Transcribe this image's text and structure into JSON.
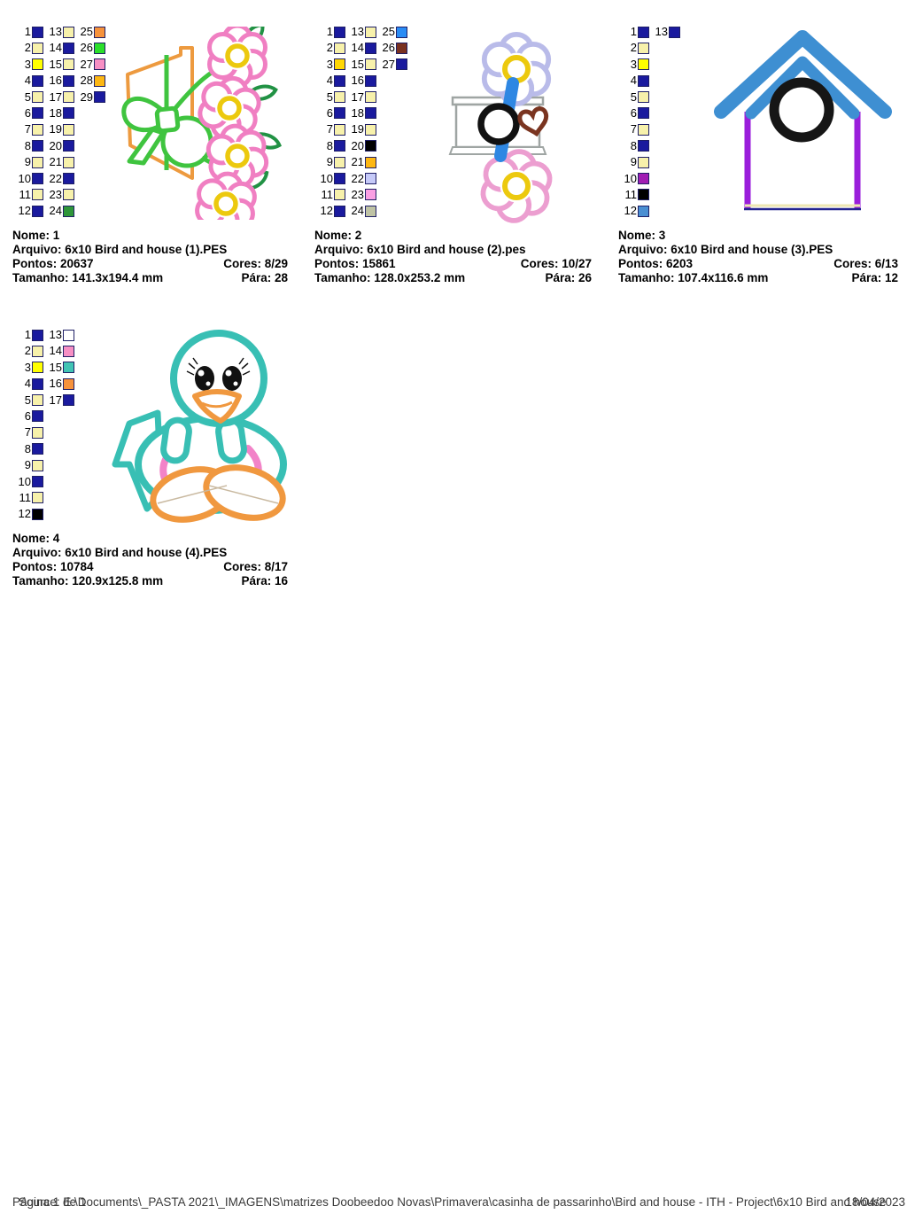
{
  "designs": [
    {
      "nome": "Nome: 1",
      "arquivo": "Arquivo: 6x10 Bird and house (1).PES",
      "pontos": "Pontos: 20637",
      "cores": "Cores: 8/29",
      "tamanho": "Tamanho: 141.3x194.4 mm",
      "para": "Pára: 28",
      "palette": [
        {
          "n": 1,
          "c": "#1A1A9E"
        },
        {
          "n": 2,
          "c": "#F7F1AB"
        },
        {
          "n": 3,
          "c": "#FFFF00"
        },
        {
          "n": 4,
          "c": "#1A1A9E"
        },
        {
          "n": 5,
          "c": "#F7F1AB"
        },
        {
          "n": 6,
          "c": "#1A1A9E"
        },
        {
          "n": 7,
          "c": "#F7F1AB"
        },
        {
          "n": 8,
          "c": "#1A1A9E"
        },
        {
          "n": 9,
          "c": "#F7F1AB"
        },
        {
          "n": 10,
          "c": "#1A1A9E"
        },
        {
          "n": 11,
          "c": "#F7F1AB"
        },
        {
          "n": 12,
          "c": "#1A1A9E"
        },
        {
          "n": 13,
          "c": "#F7F1AB"
        },
        {
          "n": 14,
          "c": "#1A1A9E"
        },
        {
          "n": 15,
          "c": "#F7F1AB"
        },
        {
          "n": 16,
          "c": "#1A1A9E"
        },
        {
          "n": 17,
          "c": "#F7F1AB"
        },
        {
          "n": 18,
          "c": "#1A1A9E"
        },
        {
          "n": 19,
          "c": "#F7F1AB"
        },
        {
          "n": 20,
          "c": "#1A1A9E"
        },
        {
          "n": 21,
          "c": "#F7F1AB"
        },
        {
          "n": 22,
          "c": "#1A1A9E"
        },
        {
          "n": 23,
          "c": "#F7F1AB"
        },
        {
          "n": 24,
          "c": "#2E9639"
        },
        {
          "n": 25,
          "c": "#F6923B"
        },
        {
          "n": 26,
          "c": "#2BDF2B"
        },
        {
          "n": 27,
          "c": "#F78FC4"
        },
        {
          "n": 28,
          "c": "#FDB713"
        },
        {
          "n": 29,
          "c": "#1A1A9E"
        }
      ]
    },
    {
      "nome": "Nome: 2",
      "arquivo": "Arquivo: 6x10 Bird and house (2).pes",
      "pontos": "Pontos: 15861",
      "cores": "Cores: 10/27",
      "tamanho": "Tamanho: 128.0x253.2 mm",
      "para": "Pára: 26",
      "palette": [
        {
          "n": 1,
          "c": "#1A1A9E"
        },
        {
          "n": 2,
          "c": "#F7F1AB"
        },
        {
          "n": 3,
          "c": "#FFD705"
        },
        {
          "n": 4,
          "c": "#1A1A9E"
        },
        {
          "n": 5,
          "c": "#F7F1AB"
        },
        {
          "n": 6,
          "c": "#1A1A9E"
        },
        {
          "n": 7,
          "c": "#F7F1AB"
        },
        {
          "n": 8,
          "c": "#1A1A9E"
        },
        {
          "n": 9,
          "c": "#F7F1AB"
        },
        {
          "n": 10,
          "c": "#1A1A9E"
        },
        {
          "n": 11,
          "c": "#F7F1AB"
        },
        {
          "n": 12,
          "c": "#1A1A9E"
        },
        {
          "n": 13,
          "c": "#F7F1AB"
        },
        {
          "n": 14,
          "c": "#1A1A9E"
        },
        {
          "n": 15,
          "c": "#F7F1AB"
        },
        {
          "n": 16,
          "c": "#1A1A9E"
        },
        {
          "n": 17,
          "c": "#F7F1AB"
        },
        {
          "n": 18,
          "c": "#1A1A9E"
        },
        {
          "n": 19,
          "c": "#F7F1AB"
        },
        {
          "n": 20,
          "c": "#000000"
        },
        {
          "n": 21,
          "c": "#FDB713"
        },
        {
          "n": 22,
          "c": "#C6CAF8"
        },
        {
          "n": 23,
          "c": "#FA9FE3"
        },
        {
          "n": 24,
          "c": "#BFC3A5"
        },
        {
          "n": 25,
          "c": "#2A8CF5"
        },
        {
          "n": 26,
          "c": "#7A3120"
        },
        {
          "n": 27,
          "c": "#1A1A9E"
        }
      ]
    },
    {
      "nome": "Nome: 3",
      "arquivo": "Arquivo: 6x10 Bird and house (3).PES",
      "pontos": "Pontos: 6203",
      "cores": "Cores: 6/13",
      "tamanho": "Tamanho: 107.4x116.6 mm",
      "para": "Pára: 12",
      "palette": [
        {
          "n": 1,
          "c": "#1A1A9E"
        },
        {
          "n": 2,
          "c": "#F7F1AB"
        },
        {
          "n": 3,
          "c": "#FFFF00"
        },
        {
          "n": 4,
          "c": "#1A1A9E"
        },
        {
          "n": 5,
          "c": "#F7F1AB"
        },
        {
          "n": 6,
          "c": "#1A1A9E"
        },
        {
          "n": 7,
          "c": "#F7F1AB"
        },
        {
          "n": 8,
          "c": "#1A1A9E"
        },
        {
          "n": 9,
          "c": "#F7F1AB"
        },
        {
          "n": 10,
          "c": "#A11DB3"
        },
        {
          "n": 11,
          "c": "#000000"
        },
        {
          "n": 12,
          "c": "#4A8FD2"
        },
        {
          "n": 13,
          "c": "#1A1A9E"
        }
      ]
    },
    {
      "nome": "Nome: 4",
      "arquivo": "Arquivo: 6x10 Bird and house (4).PES",
      "pontos": "Pontos: 10784",
      "cores": "Cores: 8/17",
      "tamanho": "Tamanho: 120.9x125.8 mm",
      "para": "Pára: 16",
      "palette": [
        {
          "n": 1,
          "c": "#1A1A9E"
        },
        {
          "n": 2,
          "c": "#F7F1AB"
        },
        {
          "n": 3,
          "c": "#FFFF00"
        },
        {
          "n": 4,
          "c": "#1A1A9E"
        },
        {
          "n": 5,
          "c": "#F7F1AB"
        },
        {
          "n": 6,
          "c": "#1A1A9E"
        },
        {
          "n": 7,
          "c": "#F7F1AB"
        },
        {
          "n": 8,
          "c": "#1A1A9E"
        },
        {
          "n": 9,
          "c": "#F7F1AB"
        },
        {
          "n": 10,
          "c": "#1A1A9E"
        },
        {
          "n": 11,
          "c": "#F7F1AB"
        },
        {
          "n": 12,
          "c": "#000000"
        },
        {
          "n": 13,
          "c": "#FFFFFF"
        },
        {
          "n": 14,
          "c": "#F78FC4"
        },
        {
          "n": 15,
          "c": "#41C4B4"
        },
        {
          "n": 16,
          "c": "#F6923B"
        },
        {
          "n": 17,
          "c": "#1A1A9E"
        }
      ]
    }
  ],
  "footer": {
    "page_label": "Página 1 de 1",
    "source": "Source: E:\\Documents\\_PASTA 2021\\_IMAGENS\\matrizes Doobeedoo Novas\\Primavera\\casinha de passarinho\\Bird and house - ITH - Project\\6x10 Bird and house",
    "date": "18/04/2023"
  }
}
